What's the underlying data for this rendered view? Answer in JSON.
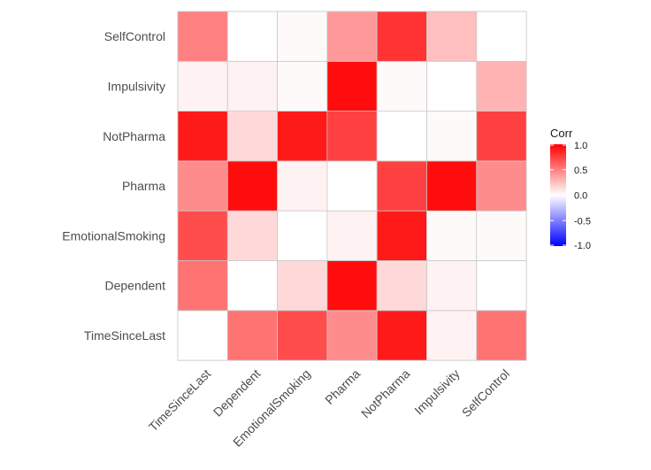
{
  "chart_data": {
    "type": "heatmap",
    "title": "",
    "xlabel": "",
    "ylabel": "",
    "x_categories": [
      "TimeSinceLast",
      "Dependent",
      "EmotionalSmoking",
      "Pharma",
      "NotPharma",
      "Impulsivity",
      "SelfControl"
    ],
    "y_categories": [
      "TimeSinceLast",
      "Dependent",
      "EmotionalSmoking",
      "Pharma",
      "NotPharma",
      "Impulsivity",
      "SelfControl"
    ],
    "values": [
      [
        0.0,
        0.55,
        0.7,
        0.45,
        0.9,
        0.05,
        0.55
      ],
      [
        0.55,
        0.0,
        0.15,
        0.95,
        0.15,
        0.05,
        0.0
      ],
      [
        0.7,
        0.15,
        0.0,
        0.05,
        0.9,
        0.02,
        0.02
      ],
      [
        0.45,
        0.95,
        0.05,
        0.0,
        0.75,
        0.95,
        0.45
      ],
      [
        0.9,
        0.15,
        0.9,
        0.75,
        0.0,
        0.02,
        0.75
      ],
      [
        0.05,
        0.05,
        0.02,
        0.95,
        0.02,
        0.0,
        0.3
      ],
      [
        0.5,
        0.0,
        0.02,
        0.4,
        0.8,
        0.25,
        0.0
      ]
    ],
    "legend": {
      "title": "Corr",
      "limits": [
        -1,
        1
      ],
      "ticks": [
        "1.0",
        "0.5",
        "0.0",
        "-0.5",
        "-1.0"
      ],
      "colors": {
        "low": "#0000ff",
        "mid": "#ffffff",
        "high": "#ff0000"
      },
      "placement": "right"
    }
  }
}
